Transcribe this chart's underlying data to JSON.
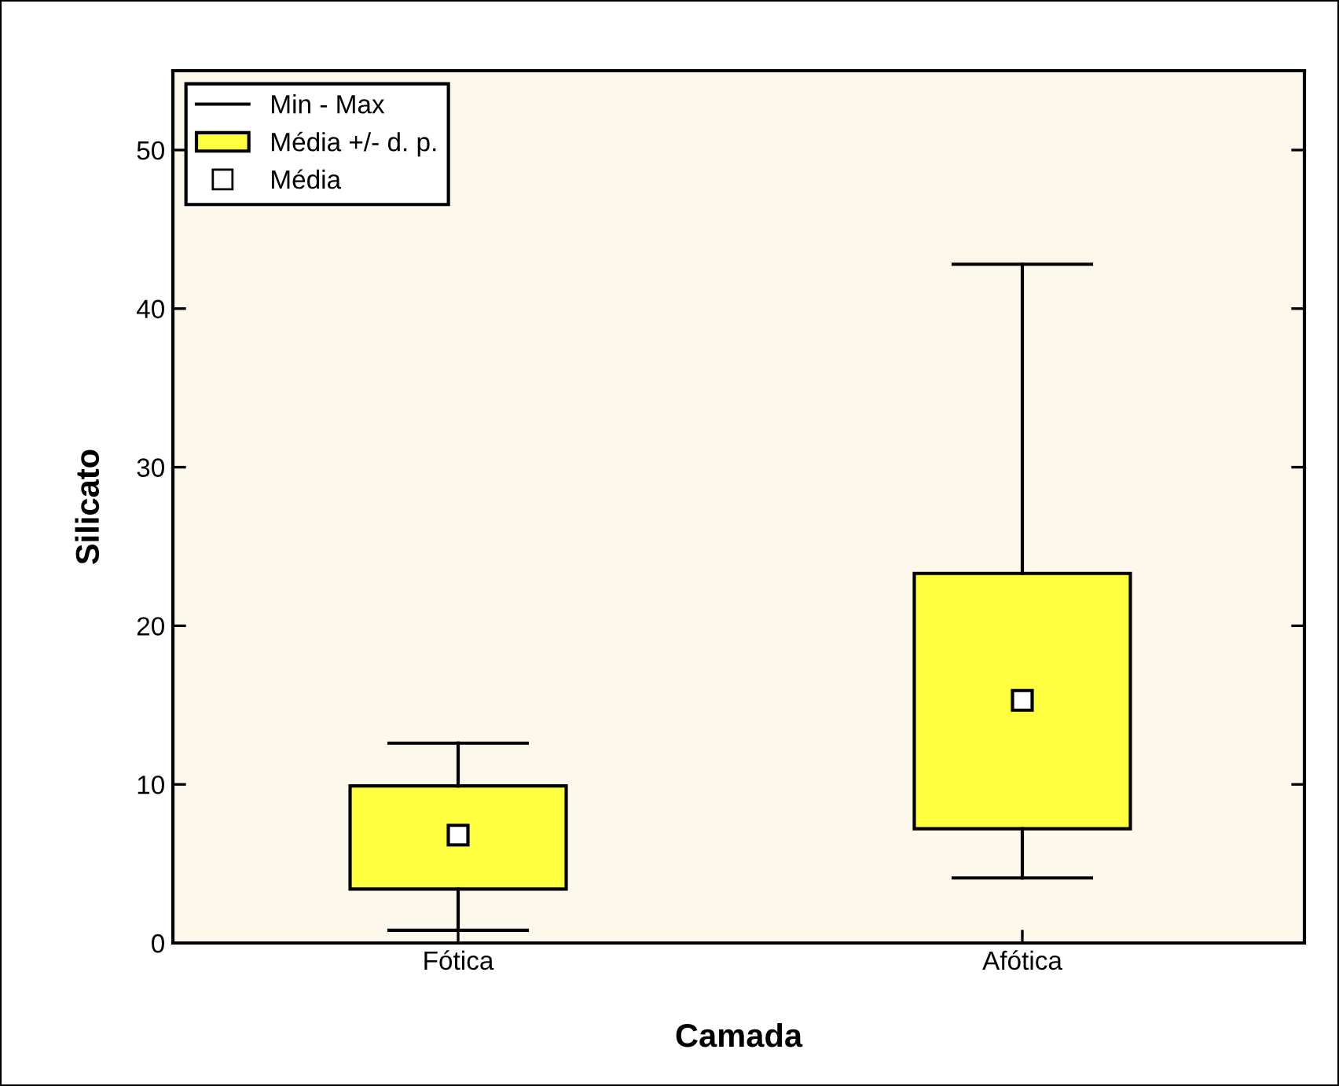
{
  "chart_data": {
    "type": "box",
    "xlabel": "Camada",
    "ylabel": "Silicato",
    "categories": [
      "Fótica",
      "Afótica"
    ],
    "series": [
      {
        "name": "Média +/- d. p.",
        "color": "#ffff40",
        "boxes": [
          {
            "low": 0.8,
            "q1": 3.4,
            "q3": 9.9,
            "high": 12.6,
            "mean": 6.8
          },
          {
            "low": 4.1,
            "q1": 7.2,
            "q3": 23.3,
            "high": 42.8,
            "mean": 15.3
          }
        ]
      }
    ],
    "annotations": [
      "Min - Max",
      "Média"
    ],
    "ylim": [
      0,
      55
    ],
    "yticks": [
      0,
      10,
      20,
      30,
      40,
      50
    ],
    "legend": "top left"
  }
}
